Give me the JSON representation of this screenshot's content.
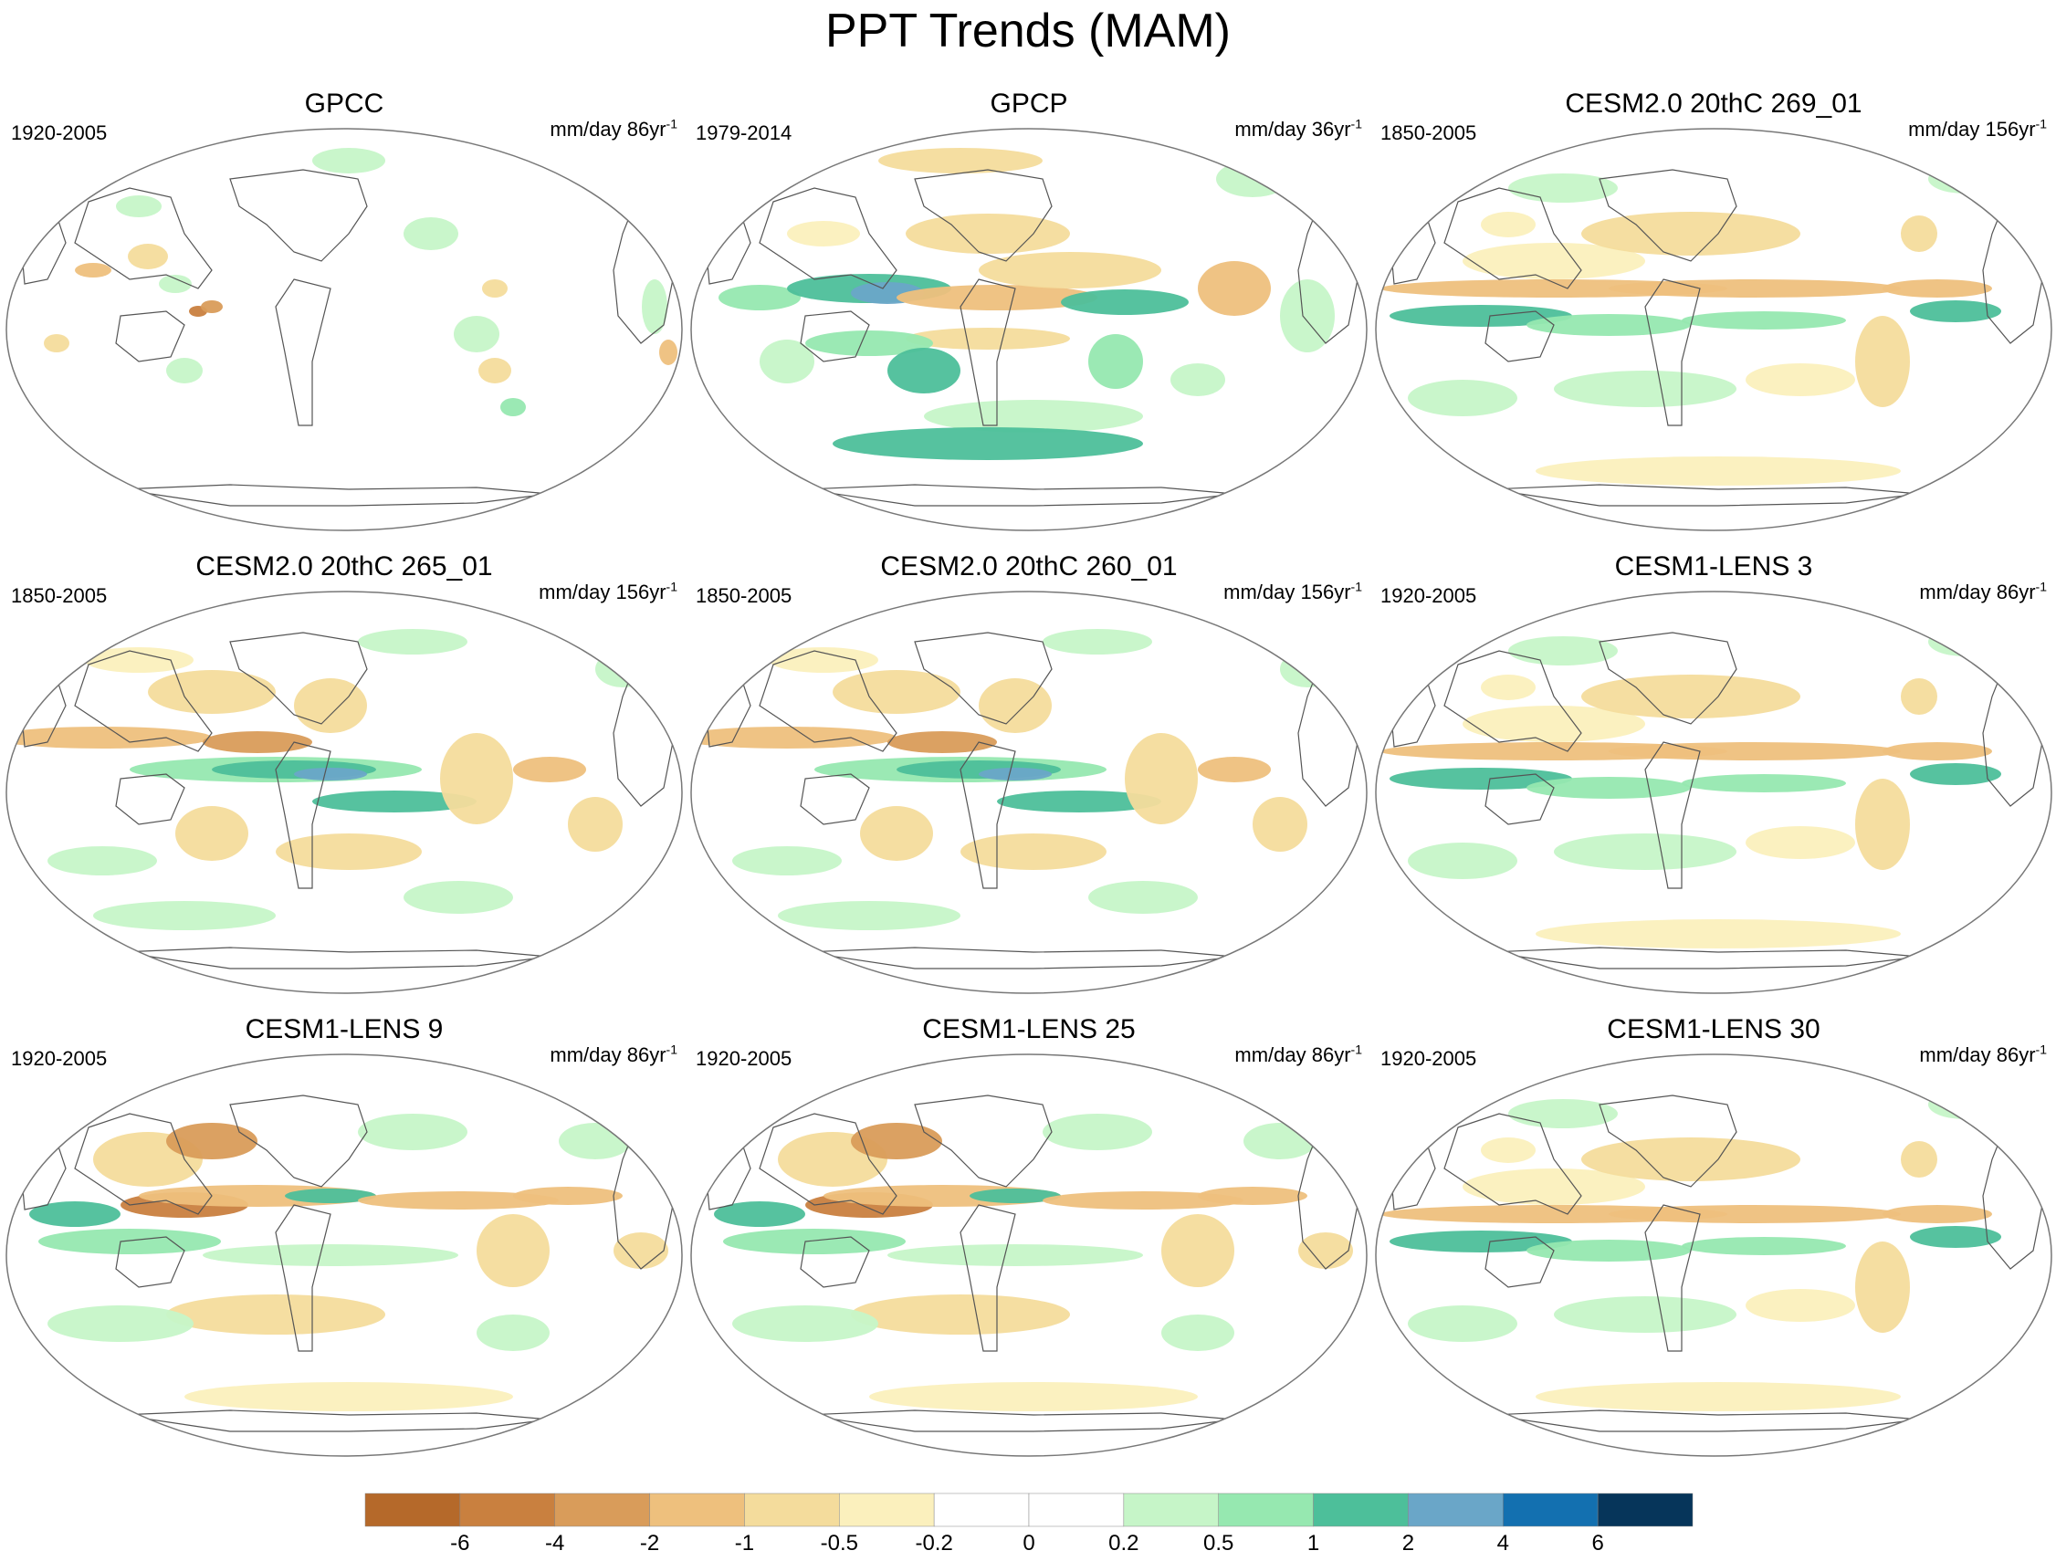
{
  "figure": {
    "title": "PPT Trends (MAM)"
  },
  "panels": [
    {
      "title": "GPCC",
      "period": "1920-2005",
      "units_base": "mm/day 86yr",
      "units_exp": "-1",
      "pattern": "land_only"
    },
    {
      "title": "GPCP",
      "period": "1979-2014",
      "units_base": "mm/day 36yr",
      "units_exp": "-1",
      "pattern": "observed"
    },
    {
      "title": "CESM2.0 20thC 269_01",
      "period": "1850-2005",
      "units_base": "mm/day 156yr",
      "units_exp": "-1",
      "pattern": "model_a"
    },
    {
      "title": "CESM2.0 20thC 265_01",
      "period": "1850-2005",
      "units_base": "mm/day 156yr",
      "units_exp": "-1",
      "pattern": "model_b"
    },
    {
      "title": "CESM2.0 20thC 260_01",
      "period": "1850-2005",
      "units_base": "mm/day 156yr",
      "units_exp": "-1",
      "pattern": "model_b"
    },
    {
      "title": "CESM1-LENS 3",
      "period": "1920-2005",
      "units_base": "mm/day 86yr",
      "units_exp": "-1",
      "pattern": "model_a"
    },
    {
      "title": "CESM1-LENS 9",
      "period": "1920-2005",
      "units_base": "mm/day 86yr",
      "units_exp": "-1",
      "pattern": "model_c"
    },
    {
      "title": "CESM1-LENS 25",
      "period": "1920-2005",
      "units_base": "mm/day 86yr",
      "units_exp": "-1",
      "pattern": "model_c"
    },
    {
      "title": "CESM1-LENS 30",
      "period": "1920-2005",
      "units_base": "mm/day 86yr",
      "units_exp": "-1",
      "pattern": "model_a"
    }
  ],
  "colorbar": {
    "colors": [
      "#b5692a",
      "#c9803f",
      "#d99c5a",
      "#eec07d",
      "#f4dc9c",
      "#fbf0bd",
      "#ffffff",
      "#ffffff",
      "#c6f5c8",
      "#96e8b0",
      "#4dbf9a",
      "#6aa6c8",
      "#1370b0",
      "#06355a"
    ],
    "labels": [
      "-6",
      "-4",
      "-2",
      "-1",
      "-0.5",
      "-0.2",
      "0",
      "0.2",
      "0.5",
      "1",
      "2",
      "4",
      "6"
    ]
  }
}
